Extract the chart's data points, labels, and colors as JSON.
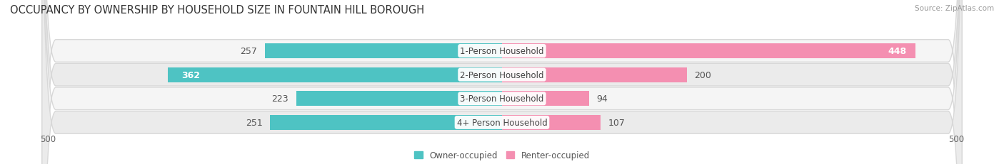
{
  "title": "OCCUPANCY BY OWNERSHIP BY HOUSEHOLD SIZE IN FOUNTAIN HILL BOROUGH",
  "source": "Source: ZipAtlas.com",
  "categories": [
    "1-Person Household",
    "2-Person Household",
    "3-Person Household",
    "4+ Person Household"
  ],
  "owner_values": [
    257,
    362,
    223,
    251
  ],
  "renter_values": [
    448,
    200,
    94,
    107
  ],
  "owner_color": "#4ec3c3",
  "renter_color": "#f48fb1",
  "row_bg_light": "#f5f5f5",
  "row_bg_dark": "#ebebeb",
  "row_border_color": "#d8d8d8",
  "xlim": 500,
  "legend_owner": "Owner-occupied",
  "legend_renter": "Renter-occupied",
  "title_fontsize": 10.5,
  "source_fontsize": 7.5,
  "label_fontsize": 8.5,
  "bar_label_fontsize": 9,
  "category_fontsize": 8.5,
  "axis_tick_label": "500"
}
